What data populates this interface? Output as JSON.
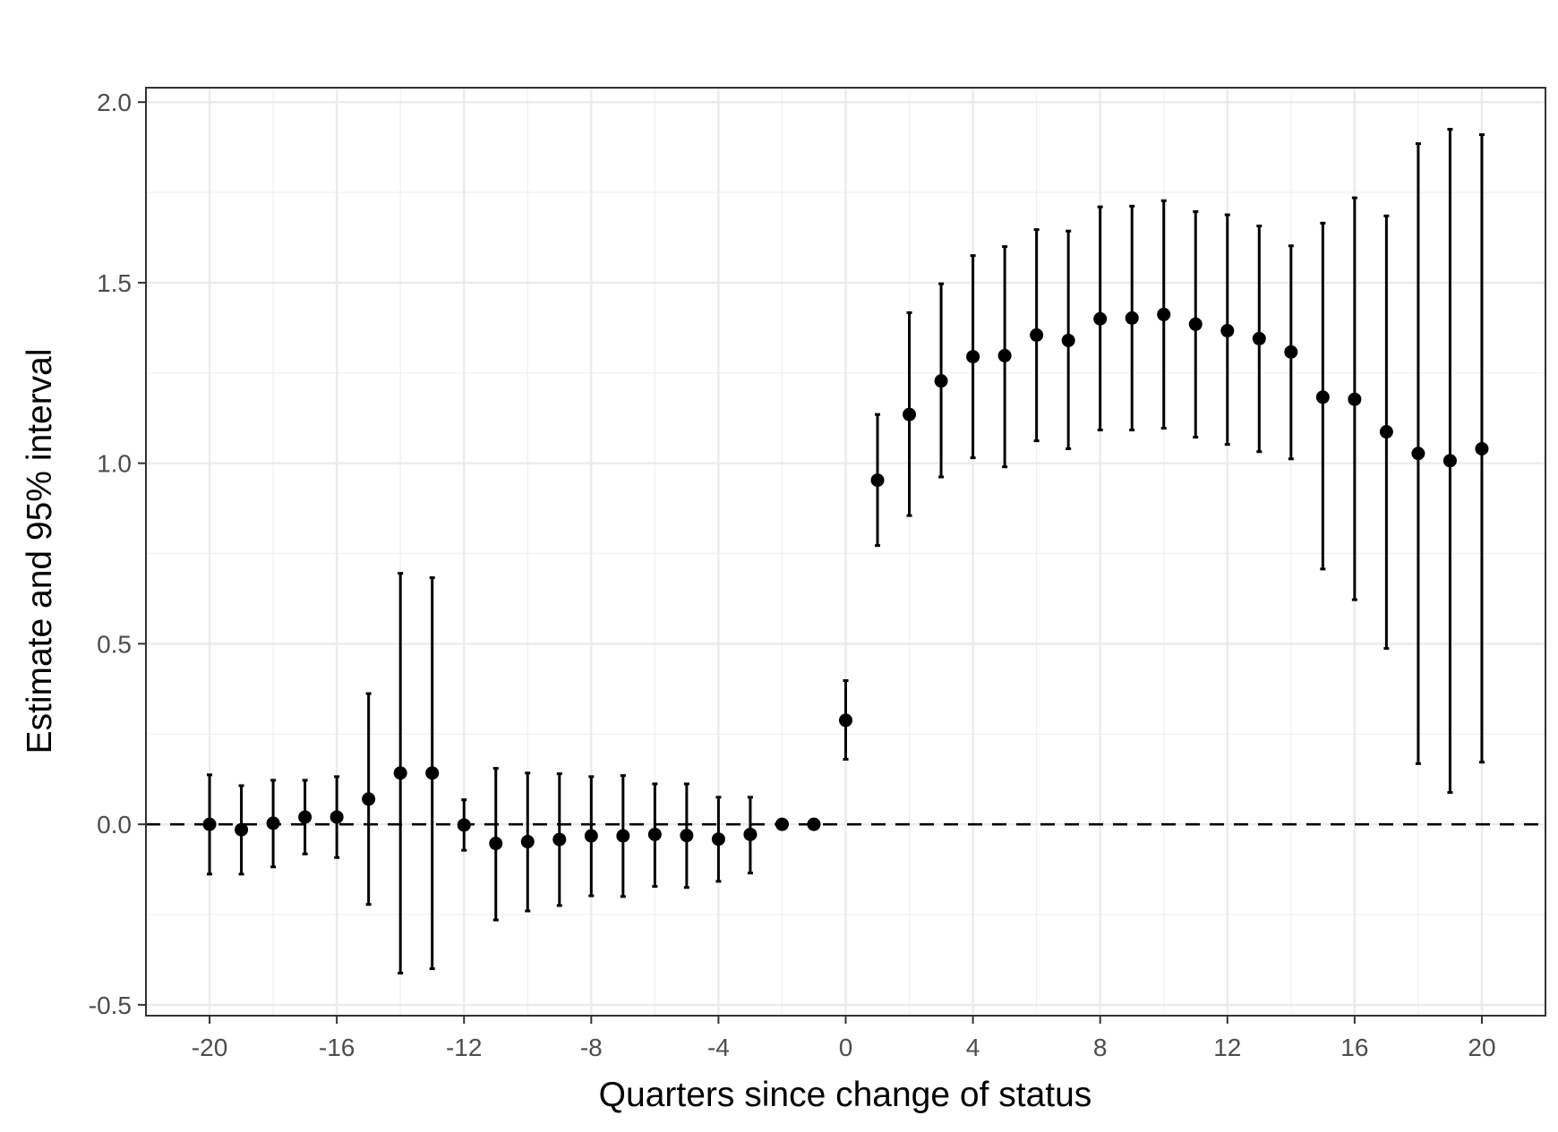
{
  "chart_data": {
    "type": "scatter",
    "title": "",
    "xlabel": "Quarters since change of status",
    "ylabel": "Estimate and 95% interval",
    "xlim": [
      -22,
      22
    ],
    "ylim": [
      -0.53,
      2.04
    ],
    "x_ticks": [
      -20,
      -16,
      -12,
      -8,
      -4,
      0,
      4,
      8,
      12,
      16,
      20
    ],
    "x_tick_labels": [
      "-20",
      "-16",
      "-12",
      "-8",
      "-4",
      "0",
      "4",
      "8",
      "12",
      "16",
      "20"
    ],
    "y_ticks": [
      -0.5,
      0,
      0.5,
      1,
      1.5,
      2
    ],
    "y_tick_labels": [
      "-0.5",
      "0.0",
      "0.5",
      "1.0",
      "1.5",
      "2.0"
    ],
    "grid": true,
    "reference_line": {
      "y": 0,
      "style": "dashed"
    },
    "series": [
      {
        "name": "Estimate",
        "x": [
          -20,
          -19,
          -18,
          -17,
          -16,
          -15,
          -14,
          -13,
          -12,
          -11,
          -10,
          -9,
          -8,
          -7,
          -6,
          -5,
          -4,
          -3,
          -2,
          -1,
          0,
          1,
          2,
          3,
          4,
          5,
          6,
          7,
          8,
          9,
          10,
          11,
          12,
          13,
          14,
          15,
          16,
          17,
          18,
          19,
          20
        ],
        "y": [
          0.0,
          -0.015,
          0.003,
          0.02,
          0.02,
          0.07,
          0.142,
          0.142,
          -0.002,
          -0.053,
          -0.048,
          -0.042,
          -0.032,
          -0.032,
          -0.028,
          -0.031,
          -0.041,
          -0.028,
          0.0,
          0.0,
          0.288,
          0.953,
          1.135,
          1.228,
          1.295,
          1.298,
          1.355,
          1.34,
          1.4,
          1.402,
          1.412,
          1.385,
          1.367,
          1.345,
          1.308,
          1.183,
          1.177,
          1.087,
          1.027,
          1.007,
          1.04
        ],
        "lower": [
          -0.138,
          -0.138,
          -0.118,
          -0.082,
          -0.092,
          -0.222,
          -0.412,
          -0.4,
          -0.072,
          -0.265,
          -0.24,
          -0.225,
          -0.198,
          -0.2,
          -0.172,
          -0.175,
          -0.158,
          -0.135,
          null,
          null,
          0.18,
          0.772,
          0.855,
          0.962,
          1.015,
          0.99,
          1.062,
          1.04,
          1.092,
          1.092,
          1.097,
          1.072,
          1.052,
          1.032,
          1.012,
          0.707,
          0.622,
          0.487,
          0.168,
          0.088,
          0.172
        ],
        "upper": [
          0.137,
          0.107,
          0.122,
          0.122,
          0.132,
          0.362,
          0.695,
          0.683,
          0.068,
          0.155,
          0.142,
          0.14,
          0.132,
          0.135,
          0.112,
          0.112,
          0.075,
          0.075,
          null,
          null,
          0.398,
          1.135,
          1.417,
          1.497,
          1.575,
          1.6,
          1.647,
          1.643,
          1.71,
          1.712,
          1.727,
          1.697,
          1.688,
          1.657,
          1.602,
          1.665,
          1.735,
          1.685,
          1.885,
          1.925,
          1.91
        ]
      }
    ]
  }
}
